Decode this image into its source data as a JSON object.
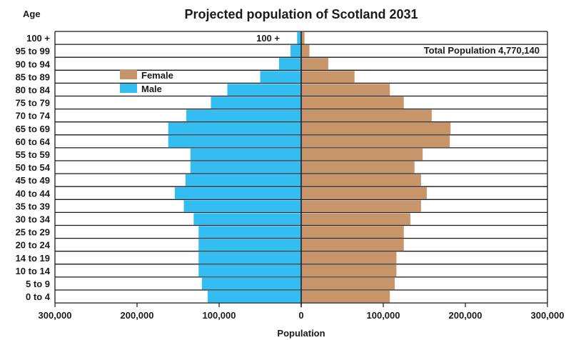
{
  "chart_data": {
    "type": "bar",
    "orientation": "horizontal-pyramid",
    "title": "Projected population of Scotland 2031",
    "ylabel": "Age",
    "xlabel": "Population",
    "total_label": "Total Population 4,770,140",
    "top_bar_label": "100 +",
    "categories": [
      "100 +",
      "95 to 99",
      "90 to 94",
      "85 to 89",
      "80 to 84",
      "75 to 79",
      "70 to 74",
      "65 to 69",
      "60 to 64",
      "55 to 59",
      "50 to 54",
      "45 to 49",
      "40 to 44",
      "35 to 39",
      "30 to 34",
      "25 to 29",
      "20 to 24",
      "14 to 19",
      "10 to 14",
      "5 to 9",
      "0 to 4"
    ],
    "series": [
      {
        "name": "Female",
        "color": "#c8956a",
        "values": [
          4000,
          10000,
          33000,
          65000,
          108000,
          125000,
          159000,
          182000,
          181000,
          148000,
          138000,
          146000,
          153000,
          146000,
          133000,
          125000,
          125000,
          116000,
          116000,
          114000,
          108000
        ]
      },
      {
        "name": "Male",
        "color": "#33bdf0",
        "values": [
          5000,
          13000,
          27000,
          50000,
          90000,
          110000,
          140000,
          162000,
          162000,
          135000,
          135000,
          141000,
          154000,
          143000,
          131000,
          125000,
          125000,
          125000,
          125000,
          121000,
          114000
        ]
      }
    ],
    "xticks": [
      "300,000",
      "200,000",
      "100,000",
      "0",
      "100,000",
      "200,000",
      "300,000"
    ],
    "xlim": [
      -300000,
      300000
    ],
    "legend_placement": "upper-left"
  }
}
